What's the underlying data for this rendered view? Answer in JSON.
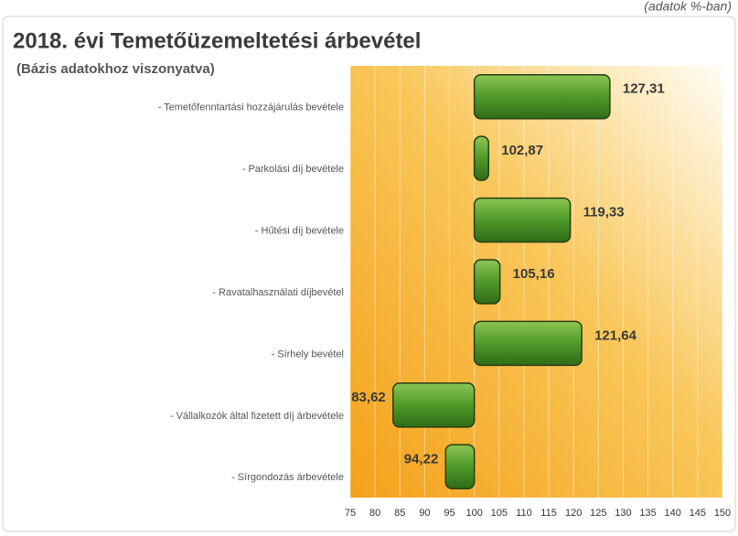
{
  "chart_data": {
    "type": "bar",
    "orientation": "horizontal",
    "note": "(adatok %-ban)",
    "title": "2018. évi Temetőüzemeltetési árbevétel",
    "subtitle": "(Bázis adatokhoz viszonyatva)",
    "categories": [
      "- Temetőfenntartási hozzájárulás bevétele",
      "- Parkolási díj bevétele",
      "- Hűtési díj bevétele",
      "- Ravatalhasználati díjbevétel",
      "- Sírhely bevétel",
      "- Vállalkozók által fizetett díj árbevétele",
      "- Sírgondozás árbevétele"
    ],
    "values": [
      127.31,
      102.87,
      119.33,
      105.16,
      121.64,
      83.62,
      94.22
    ],
    "value_labels": [
      "127,31",
      "102,87",
      "119,33",
      "105,16",
      "121,64",
      "83,62",
      "94,22"
    ],
    "color": "#4f9a2a",
    "baseline": 100,
    "xlim": [
      75,
      150
    ],
    "xticks": [
      75,
      80,
      85,
      90,
      95,
      100,
      105,
      110,
      115,
      120,
      125,
      130,
      135,
      140,
      145,
      150
    ],
    "grid": true
  }
}
